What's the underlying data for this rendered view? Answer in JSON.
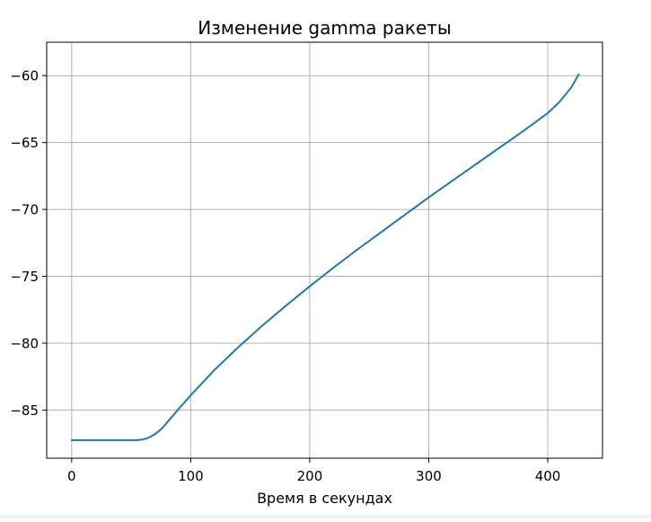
{
  "chart_data": {
    "type": "line",
    "title": "Изменение gamma ракеты",
    "xlabel": "Время в секундах",
    "ylabel": "",
    "xlim": [
      -21,
      446
    ],
    "ylim": [
      -88.6,
      -57.5
    ],
    "xticks": [
      0,
      100,
      200,
      300,
      400
    ],
    "yticks": [
      -85,
      -80,
      -75,
      -70,
      -65,
      -60
    ],
    "xtick_labels": [
      "0",
      "100",
      "200",
      "300",
      "400"
    ],
    "ytick_labels": [
      "−85",
      "−80",
      "−75",
      "−70",
      "−65",
      "−60"
    ],
    "grid": true,
    "series": [
      {
        "color": "#1f77b4",
        "x": [
          0,
          20,
          40,
          55,
          60,
          65,
          70,
          75,
          80,
          90,
          100,
          120,
          140,
          160,
          180,
          200,
          220,
          240,
          260,
          280,
          300,
          320,
          340,
          360,
          380,
          400,
          410,
          420,
          426
        ],
        "y": [
          -87.25,
          -87.25,
          -87.25,
          -87.25,
          -87.2,
          -87.05,
          -86.8,
          -86.45,
          -85.95,
          -84.9,
          -83.9,
          -82.0,
          -80.3,
          -78.7,
          -77.2,
          -75.75,
          -74.35,
          -73.0,
          -71.7,
          -70.4,
          -69.1,
          -67.85,
          -66.6,
          -65.35,
          -64.1,
          -62.8,
          -61.95,
          -60.85,
          -59.9
        ]
      }
    ]
  }
}
